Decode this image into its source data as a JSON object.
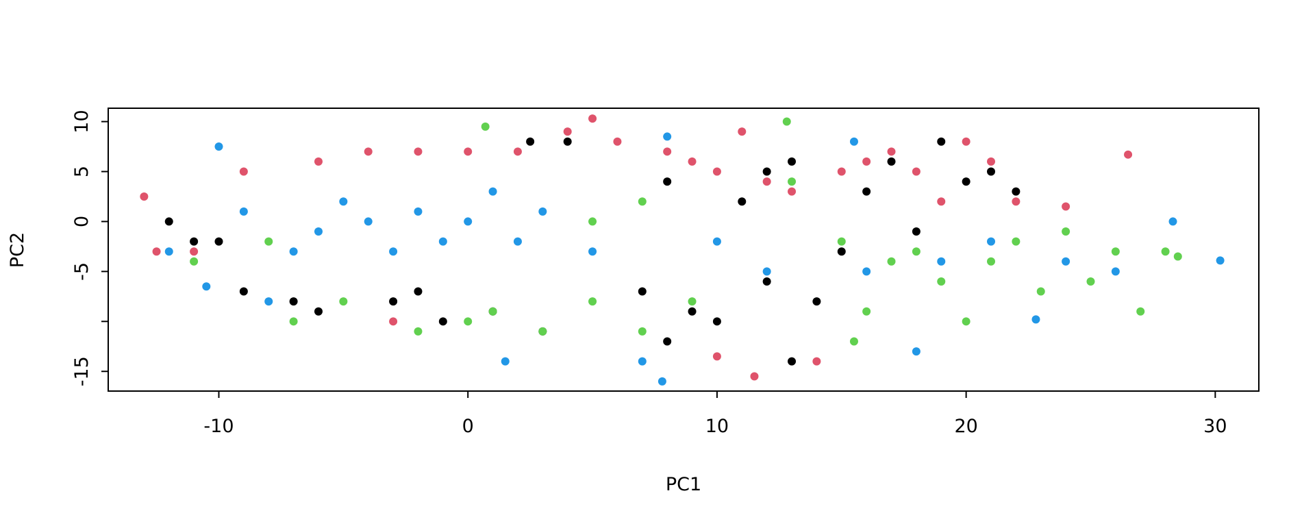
{
  "chart_data": {
    "type": "scatter",
    "xlabel": "PC1",
    "ylabel": "PC2",
    "xlim": [
      -14.44,
      31.75
    ],
    "ylim": [
      -16.97,
      11.34
    ],
    "xticks": [
      -10,
      0,
      10,
      20,
      30
    ],
    "yticks": [
      -15,
      {
        "value": -10,
        "label": null
      },
      -5,
      0,
      5,
      10
    ],
    "series": [
      {
        "color": "#000000",
        "x": [
          -12,
          -11,
          -9,
          -7,
          -6,
          -3,
          -1,
          1,
          2.5,
          4,
          3,
          7,
          8,
          9,
          10,
          11,
          12,
          13,
          13,
          14,
          15,
          16,
          17,
          18,
          19,
          20,
          21,
          22,
          12,
          8,
          -2,
          -10
        ],
        "y": [
          0,
          -2,
          -7,
          -8,
          -9,
          -8,
          -10,
          -9,
          8,
          8,
          -11,
          -7,
          -12,
          -9,
          -10,
          2,
          5,
          6,
          -14,
          -8,
          -3,
          3,
          6,
          -1,
          8,
          4,
          5,
          3,
          -6,
          4,
          -7,
          -2
        ]
      },
      {
        "color": "#DF536B",
        "x": [
          -13,
          -12.5,
          -11,
          -9,
          -6,
          -4,
          -2,
          0,
          2,
          4,
          5,
          6,
          8,
          9,
          10,
          11,
          12,
          13,
          14,
          15,
          16,
          17,
          18,
          19,
          20,
          21,
          22,
          24,
          26.5,
          10,
          11.5,
          -3
        ],
        "y": [
          2.5,
          -3,
          -3,
          5,
          6,
          7,
          7,
          7,
          7,
          9,
          10.3,
          8,
          7,
          6,
          5,
          9,
          4,
          3,
          -14,
          5,
          6,
          7,
          5,
          2,
          8,
          6,
          2,
          1.5,
          6.7,
          -13.5,
          -15.5,
          -10
        ]
      },
      {
        "color": "#61D04F",
        "x": [
          -11,
          -7,
          -5,
          -2,
          0,
          1,
          0.7,
          3,
          5,
          7,
          9,
          12.8,
          13,
          15,
          15.5,
          16,
          17,
          18,
          19,
          20,
          21,
          22,
          23,
          24,
          25,
          26,
          27,
          28,
          28.5,
          5,
          7,
          -8
        ],
        "y": [
          -4,
          -10,
          -8,
          -11,
          -10,
          -9,
          9.5,
          -11,
          -8,
          -11,
          -8,
          10,
          4,
          -2,
          -12,
          -9,
          -4,
          -3,
          -6,
          -10,
          -4,
          -2,
          -7,
          -1,
          -6,
          -3,
          -9,
          -3,
          -3.5,
          0,
          2,
          -2
        ]
      },
      {
        "color": "#2297E6",
        "x": [
          -12,
          -10.5,
          -10,
          -8,
          -6,
          -5,
          -4,
          -3,
          -2,
          -1,
          0,
          1,
          2,
          3,
          1.5,
          5,
          7,
          7.8,
          8,
          10,
          12,
          15.5,
          16,
          18,
          19,
          21,
          22.8,
          24,
          26,
          28.3,
          30.2,
          -7,
          -9
        ],
        "y": [
          -3,
          -6.5,
          7.5,
          -8,
          -1,
          2,
          0,
          -3,
          1,
          -2,
          0,
          3,
          -2,
          1,
          -14,
          -3,
          -14,
          -16,
          8.5,
          -2,
          -5,
          8,
          -5,
          -13,
          -4,
          -2,
          -9.8,
          -4,
          -5,
          0,
          -3.9,
          -3,
          1
        ]
      }
    ]
  }
}
